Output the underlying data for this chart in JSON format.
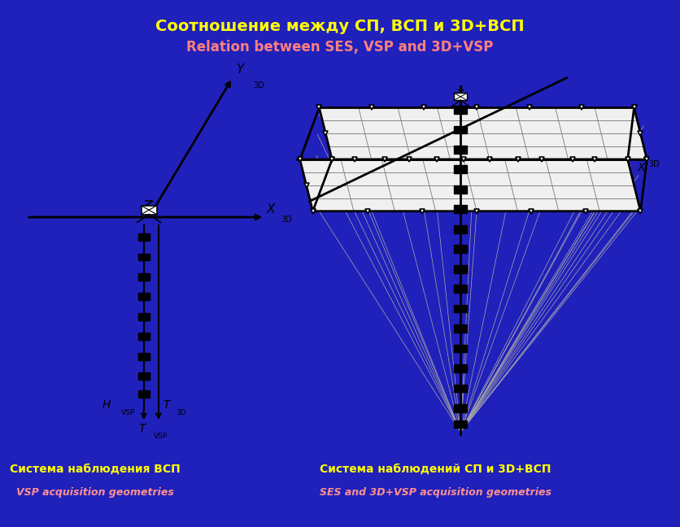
{
  "bg_color": "#2020bb",
  "panel_bg": "#ffffff",
  "title_ru": "Соотношение между СП, ВСП и 3D+ВСП",
  "title_en": "Relation between SES, VSP and 3D+VSP",
  "title_ru_color": "#ffff00",
  "title_en_color": "#ff8080",
  "caption1_ru": "Система наблюдения ВСП",
  "caption1_en": "VSP acquisition geometries",
  "caption2_ru": "Система наблюдений СП и 3D+ВСП",
  "caption2_en": "SES and 3D+VSP acquisition geometries",
  "caption_yellow": "#ffff00",
  "caption_red": "#ff9090"
}
